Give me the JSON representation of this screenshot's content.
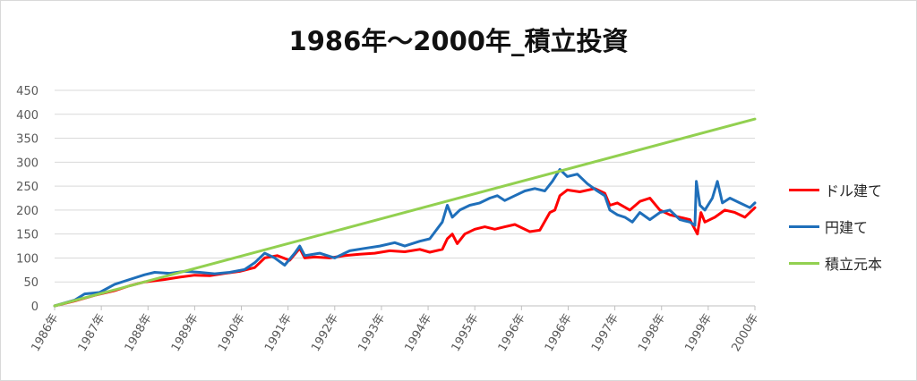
{
  "chart_data": {
    "type": "line",
    "title": "1986年～2000年_積立投資",
    "xlabel": "",
    "ylabel": "",
    "ylim": [
      0,
      450
    ],
    "yticks": [
      0,
      50,
      100,
      150,
      200,
      250,
      300,
      350,
      400,
      450
    ],
    "xlim": [
      1986.0,
      2000.0
    ],
    "xtick_labels": [
      "1986年",
      "1987年",
      "1988年",
      "1989年",
      "1990年",
      "1991年",
      "1992年",
      "1993年",
      "1994年",
      "1995年",
      "1996年",
      "1996年",
      "1997年",
      "1998年",
      "1999年",
      "2000年"
    ],
    "grid": true,
    "legend_position": "right",
    "series": [
      {
        "name": "ドル建て",
        "color": "#ff0000",
        "points": [
          [
            1986.0,
            0
          ],
          [
            1986.4,
            10
          ],
          [
            1986.8,
            22
          ],
          [
            1987.2,
            32
          ],
          [
            1987.5,
            42
          ],
          [
            1987.8,
            50
          ],
          [
            1988.2,
            55
          ],
          [
            1988.5,
            60
          ],
          [
            1988.8,
            64
          ],
          [
            1989.1,
            63
          ],
          [
            1989.4,
            68
          ],
          [
            1989.7,
            72
          ],
          [
            1990.0,
            80
          ],
          [
            1990.2,
            100
          ],
          [
            1990.45,
            105
          ],
          [
            1990.7,
            95
          ],
          [
            1990.9,
            120
          ],
          [
            1991.0,
            100
          ],
          [
            1991.2,
            102
          ],
          [
            1991.5,
            100
          ],
          [
            1991.8,
            105
          ],
          [
            1992.1,
            108
          ],
          [
            1992.4,
            110
          ],
          [
            1992.7,
            115
          ],
          [
            1993.0,
            113
          ],
          [
            1993.3,
            118
          ],
          [
            1993.5,
            112
          ],
          [
            1993.75,
            118
          ],
          [
            1993.85,
            140
          ],
          [
            1993.95,
            150
          ],
          [
            1994.05,
            130
          ],
          [
            1994.2,
            150
          ],
          [
            1994.4,
            160
          ],
          [
            1994.6,
            165
          ],
          [
            1994.8,
            160
          ],
          [
            1995.0,
            165
          ],
          [
            1995.2,
            170
          ],
          [
            1995.5,
            155
          ],
          [
            1995.7,
            158
          ],
          [
            1995.9,
            195
          ],
          [
            1996.0,
            200
          ],
          [
            1996.1,
            230
          ],
          [
            1996.25,
            242
          ],
          [
            1996.5,
            238
          ],
          [
            1996.8,
            245
          ],
          [
            1997.0,
            235
          ],
          [
            1997.1,
            210
          ],
          [
            1997.25,
            215
          ],
          [
            1997.5,
            200
          ],
          [
            1997.7,
            218
          ],
          [
            1997.9,
            225
          ],
          [
            1998.1,
            200
          ],
          [
            1998.3,
            190
          ],
          [
            1998.5,
            185
          ],
          [
            1998.7,
            180
          ],
          [
            1998.85,
            150
          ],
          [
            1998.92,
            195
          ],
          [
            1999.0,
            175
          ],
          [
            1999.2,
            185
          ],
          [
            1999.4,
            200
          ],
          [
            1999.6,
            195
          ],
          [
            1999.8,
            185
          ],
          [
            2000.0,
            205
          ]
        ]
      },
      {
        "name": "円建て",
        "color": "#1f6fba",
        "points": [
          [
            1986.0,
            0
          ],
          [
            1986.4,
            12
          ],
          [
            1986.6,
            25
          ],
          [
            1986.9,
            28
          ],
          [
            1987.2,
            45
          ],
          [
            1987.5,
            55
          ],
          [
            1987.8,
            65
          ],
          [
            1988.0,
            70
          ],
          [
            1988.3,
            68
          ],
          [
            1988.6,
            72
          ],
          [
            1988.9,
            70
          ],
          [
            1989.2,
            67
          ],
          [
            1989.5,
            70
          ],
          [
            1989.8,
            76
          ],
          [
            1990.0,
            90
          ],
          [
            1990.2,
            110
          ],
          [
            1990.4,
            100
          ],
          [
            1990.6,
            85
          ],
          [
            1990.8,
            110
          ],
          [
            1990.9,
            125
          ],
          [
            1991.0,
            105
          ],
          [
            1991.3,
            110
          ],
          [
            1991.6,
            100
          ],
          [
            1991.9,
            115
          ],
          [
            1992.2,
            120
          ],
          [
            1992.5,
            125
          ],
          [
            1992.8,
            132
          ],
          [
            1993.0,
            125
          ],
          [
            1993.3,
            135
          ],
          [
            1993.5,
            140
          ],
          [
            1993.75,
            175
          ],
          [
            1993.85,
            210
          ],
          [
            1993.95,
            185
          ],
          [
            1994.1,
            200
          ],
          [
            1994.3,
            210
          ],
          [
            1994.5,
            215
          ],
          [
            1994.7,
            225
          ],
          [
            1994.85,
            230
          ],
          [
            1995.0,
            220
          ],
          [
            1995.2,
            230
          ],
          [
            1995.4,
            240
          ],
          [
            1995.6,
            245
          ],
          [
            1995.8,
            240
          ],
          [
            1995.95,
            260
          ],
          [
            1996.1,
            285
          ],
          [
            1996.25,
            270
          ],
          [
            1996.45,
            275
          ],
          [
            1996.65,
            255
          ],
          [
            1996.85,
            240
          ],
          [
            1997.0,
            230
          ],
          [
            1997.1,
            200
          ],
          [
            1997.25,
            190
          ],
          [
            1997.4,
            185
          ],
          [
            1997.55,
            175
          ],
          [
            1997.7,
            195
          ],
          [
            1997.9,
            180
          ],
          [
            1998.1,
            195
          ],
          [
            1998.3,
            200
          ],
          [
            1998.5,
            180
          ],
          [
            1998.7,
            175
          ],
          [
            1998.8,
            168
          ],
          [
            1998.83,
            260
          ],
          [
            1998.9,
            210
          ],
          [
            1999.0,
            200
          ],
          [
            1999.15,
            225
          ],
          [
            1999.25,
            260
          ],
          [
            1999.35,
            215
          ],
          [
            1999.5,
            225
          ],
          [
            1999.7,
            215
          ],
          [
            1999.9,
            205
          ],
          [
            2000.0,
            215
          ]
        ]
      },
      {
        "name": "積立元本",
        "color": "#92d050",
        "points": [
          [
            1986.0,
            0
          ],
          [
            2000.0,
            390
          ]
        ]
      }
    ]
  }
}
